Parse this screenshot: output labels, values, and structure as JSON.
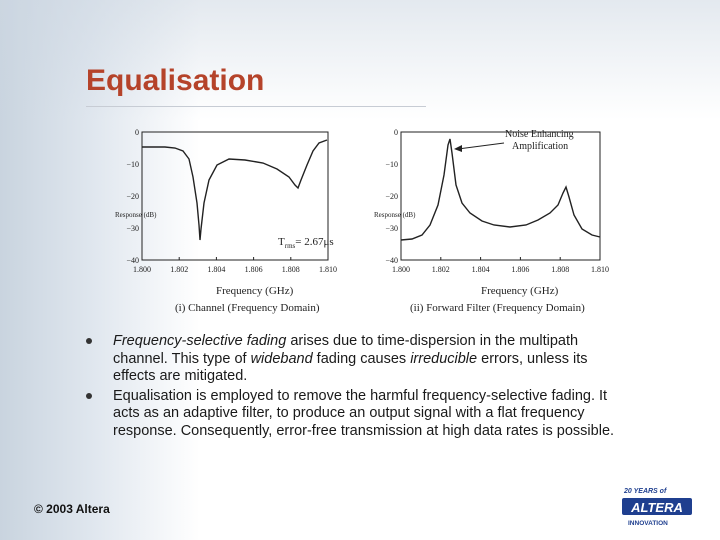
{
  "title": "Equalisation",
  "left_plot": {
    "caption": "(i) Channel (Frequency Domain)",
    "xlabel": "Frequency (GHz)",
    "annotation": "T",
    "annotation_sub": "rms",
    "annotation_value": "= 2.67μs",
    "yticks": [
      "0",
      "−10",
      "−20",
      "−30",
      "−40"
    ],
    "xticks": [
      "1.800",
      "1.802",
      "1.804",
      "1.806",
      "1.808",
      "1.810"
    ],
    "side_label": "Response (dB)"
  },
  "right_plot": {
    "caption": "(ii) Forward Filter (Frequency Domain)",
    "xlabel": "Frequency (GHz)",
    "annotation_line1": "Noise Enhancing",
    "annotation_line2": "Amplification",
    "yticks": [
      "0",
      "−10",
      "−20",
      "−30",
      "−40"
    ],
    "xticks": [
      "1.800",
      "1.802",
      "1.804",
      "1.806",
      "1.808",
      "1.810"
    ],
    "side_label": "Response (dB)"
  },
  "bullets": [
    {
      "parts": [
        {
          "text": "Frequency-selective fading",
          "italic": true
        },
        {
          "text": " arises due to time-dispersion in the multipath channel.  This type of ",
          "italic": false
        },
        {
          "text": "wideband",
          "italic": true
        },
        {
          "text": " fading causes ",
          "italic": false
        },
        {
          "text": "irreducible",
          "italic": true
        },
        {
          "text": " errors, unless its effects are mitigated.",
          "italic": false
        }
      ]
    },
    {
      "parts": [
        {
          "text": "Equalisation is employed to remove the harmful frequency-selective fading.  It acts as an adaptive filter, to produce an output signal with a flat frequency response.  Consequently, error-free transmission at high data rates is possible.",
          "italic": false
        }
      ]
    }
  ],
  "footer": "© 2003 Altera",
  "logo": {
    "top": "20 YEARS of",
    "brand": "ALTERA",
    "bottom": "INNOVATION",
    "color": "#1f3f8f"
  },
  "colors": {
    "title": "#b5432a",
    "curve": "#222222"
  }
}
